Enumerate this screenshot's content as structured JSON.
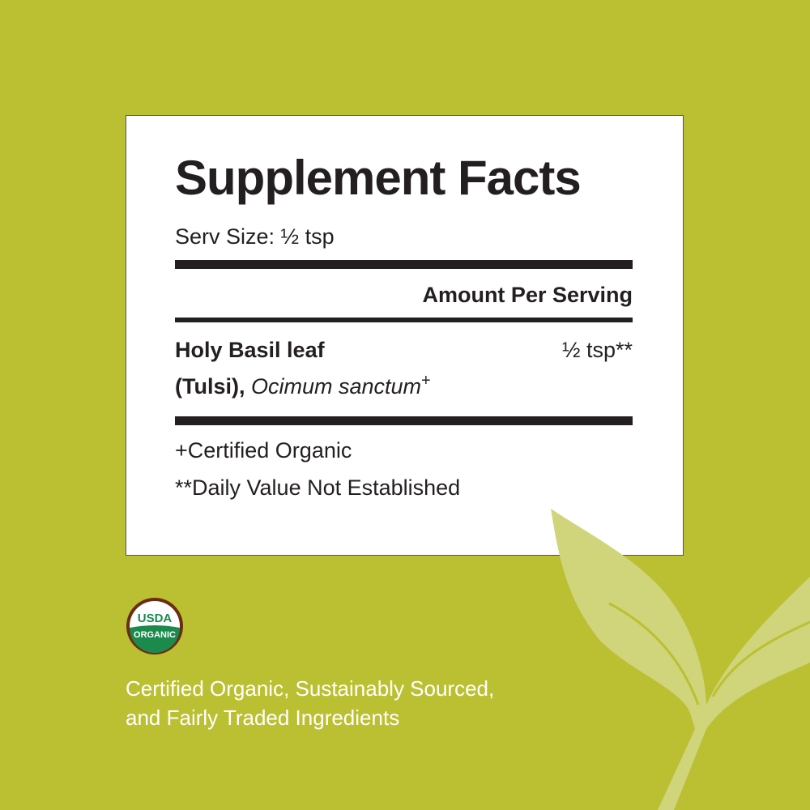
{
  "panel": {
    "title": "Supplement Facts",
    "serving_size": "Serv Size: ½ tsp",
    "amount_header": "Amount Per Serving",
    "ingredient": {
      "name_line1": "Holy Basil leaf",
      "name_bold": "(Tulsi),",
      "latin": "Ocimum sanctum",
      "mark": "+",
      "amount": "½ tsp**"
    },
    "footnotes": [
      "+Certified Organic",
      "**Daily Value Not Established"
    ]
  },
  "seal": {
    "top": "USDA",
    "bottom": "ORGANIC"
  },
  "tagline": {
    "line1": "Certified Organic, Sustainably Sourced,",
    "line2": "and Fairly Traded Ingredients"
  },
  "colors": {
    "background": "#bbc032",
    "leaf": "#d0d47a",
    "text": "#231f20",
    "seal_green": "#1b8a4c",
    "seal_brown": "#6b2d12"
  }
}
